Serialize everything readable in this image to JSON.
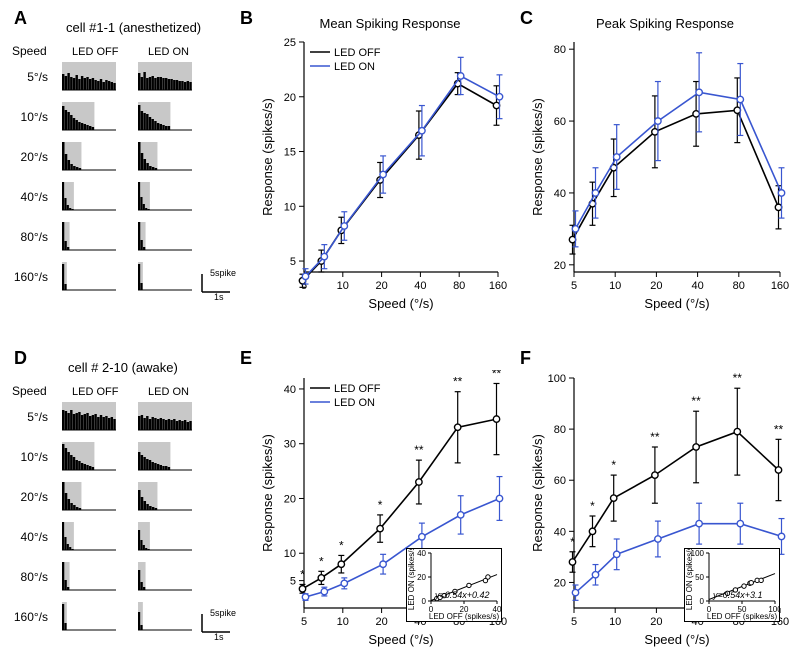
{
  "colors": {
    "bg": "#ffffff",
    "ink": "#000000",
    "off": "#000000",
    "on": "#3956d0",
    "shade": "#c8c8c8"
  },
  "panelLetters": {
    "A": "A",
    "B": "B",
    "C": "C",
    "D": "D",
    "E": "E",
    "F": "F"
  },
  "psth": {
    "cell1_title": "cell #1-1 (anesthetized)",
    "cell2_title": "cell # 2-10 (awake)",
    "speed_header": "Speed",
    "col_off": "LED OFF",
    "col_on": "LED ON",
    "speeds_labels": [
      "5°/s",
      "10°/s",
      "20°/s",
      "40°/s",
      "80°/s",
      "160°/s"
    ],
    "stim_fracs": [
      1.0,
      0.6,
      0.36,
      0.22,
      0.14,
      0.09
    ],
    "scale_v": "5spike",
    "scale_h": "1s",
    "cell1": {
      "off": [
        [
          16,
          14,
          17,
          13,
          12,
          15,
          11,
          14,
          12,
          13,
          11,
          12,
          10,
          9,
          11,
          8,
          10,
          9,
          8,
          7
        ],
        [
          24,
          20,
          18,
          15,
          12,
          10,
          8,
          7,
          6,
          5,
          4,
          3
        ],
        [
          28,
          16,
          10,
          6,
          4,
          3,
          2
        ],
        [
          28,
          12,
          5,
          2,
          1
        ],
        [
          28,
          9,
          3
        ],
        [
          26,
          6
        ]
      ],
      "on": [
        [
          17,
          13,
          18,
          12,
          13,
          14,
          12,
          13,
          13,
          12,
          12,
          11,
          11,
          10,
          10,
          9,
          9,
          8,
          9,
          8
        ],
        [
          25,
          19,
          17,
          16,
          13,
          11,
          9,
          7,
          6,
          5,
          4,
          4
        ],
        [
          28,
          17,
          11,
          7,
          4,
          3,
          2
        ],
        [
          28,
          13,
          6,
          2,
          1
        ],
        [
          28,
          10,
          3
        ],
        [
          26,
          7
        ]
      ]
    },
    "cell2": {
      "off": [
        [
          20,
          19,
          17,
          20,
          16,
          17,
          18,
          15,
          16,
          17,
          14,
          15,
          16,
          13,
          15,
          13,
          14,
          12,
          13,
          11
        ],
        [
          26,
          22,
          18,
          15,
          13,
          10,
          9,
          7,
          6,
          5,
          4,
          3
        ],
        [
          28,
          17,
          11,
          7,
          5,
          3,
          2
        ],
        [
          28,
          13,
          6,
          3,
          1
        ],
        [
          28,
          10,
          3
        ],
        [
          26,
          7
        ]
      ],
      "on": [
        [
          14,
          15,
          12,
          14,
          11,
          13,
          12,
          11,
          12,
          11,
          10,
          11,
          10,
          11,
          9,
          10,
          9,
          10,
          8,
          9
        ],
        [
          18,
          15,
          13,
          11,
          10,
          8,
          7,
          6,
          5,
          4,
          4,
          3
        ],
        [
          20,
          13,
          9,
          6,
          4,
          3,
          2
        ],
        [
          20,
          10,
          5,
          2,
          1
        ],
        [
          20,
          8,
          3
        ],
        [
          18,
          5
        ]
      ]
    }
  },
  "charts": {
    "x_speeds": [
      5,
      7,
      10,
      20,
      40,
      80,
      160
    ],
    "line_width": 1.6,
    "marker_radius": 3.2,
    "B": {
      "title": "Mean Spiking Response",
      "xlabel": "Speed (°/s)",
      "ylabel": "Response (spikes/s)",
      "yticks": [
        5,
        10,
        15,
        20,
        25
      ],
      "ylim": [
        4,
        25
      ],
      "xticks": [
        5,
        10,
        20,
        40,
        80,
        160
      ],
      "xticklabels": [
        "5",
        "10",
        "20",
        "40",
        "80",
        "160"
      ],
      "legend": {
        "off": "LED OFF",
        "on": "LED ON"
      },
      "off": {
        "y": [
          3.2,
          5.0,
          7.8,
          12.4,
          16.5,
          21.2,
          19.2
        ],
        "err": [
          0.6,
          1.0,
          1.2,
          1.6,
          2.2,
          1.0,
          1.8
        ]
      },
      "on": {
        "y": [
          3.6,
          5.4,
          8.2,
          12.9,
          16.9,
          21.9,
          20.0
        ],
        "err": [
          0.7,
          1.1,
          1.3,
          1.7,
          2.3,
          1.7,
          2.0
        ]
      }
    },
    "C": {
      "title": "Peak Spiking Response",
      "xlabel": "Speed (°/s)",
      "ylabel": "Response (spikes/s)",
      "yticks": [
        20,
        40,
        60,
        80
      ],
      "ylim": [
        18,
        82
      ],
      "xticks": [
        5,
        10,
        20,
        40,
        80,
        160
      ],
      "xticklabels": [
        "5",
        "10",
        "20",
        "40",
        "80",
        "160"
      ],
      "off": {
        "y": [
          27,
          37,
          47,
          57,
          62,
          63,
          36
        ],
        "err": [
          4,
          6,
          8,
          10,
          9,
          9,
          6
        ]
      },
      "on": {
        "y": [
          30,
          40,
          50,
          60,
          68,
          66,
          40
        ],
        "err": [
          5,
          7,
          9,
          11,
          11,
          10,
          7
        ]
      }
    },
    "E": {
      "xlabel": "Speed (°/s)",
      "ylabel": "Response (spikes/s)",
      "yticks": [
        5,
        10,
        20,
        30,
        40
      ],
      "ylim": [
        0,
        42
      ],
      "xticks": [
        5,
        10,
        20,
        40,
        80,
        160
      ],
      "xticklabels": [
        "5",
        "10",
        "20",
        "40",
        "80",
        "160"
      ],
      "legend": {
        "off": "LED OFF",
        "on": "LED ON"
      },
      "off": {
        "y": [
          3.5,
          5.5,
          8.0,
          14.5,
          23.0,
          33.0,
          34.5
        ],
        "err": [
          0.8,
          1.2,
          1.6,
          2.5,
          4.0,
          6.5,
          6.5
        ]
      },
      "on": {
        "y": [
          2.0,
          3.0,
          4.5,
          8.0,
          13.0,
          17.0,
          20.0
        ],
        "err": [
          0.6,
          0.8,
          1.0,
          1.8,
          2.5,
          3.5,
          4.0
        ]
      },
      "sig": [
        "*",
        "*",
        "*",
        "*",
        "**",
        "**",
        "**"
      ],
      "inset": {
        "xlabel": "LED OFF (spikes/s)",
        "ylabel": "LED ON (spikes/s)",
        "xlim": [
          0,
          40
        ],
        "ylim": [
          0,
          40
        ],
        "xticks": [
          0,
          20,
          40
        ],
        "yticks": [
          0,
          20,
          40
        ],
        "points_x": [
          3.5,
          5.5,
          8.0,
          14.5,
          23.0,
          33.0,
          34.5
        ],
        "points_y": [
          2.0,
          3.0,
          4.5,
          8.0,
          13.0,
          17.0,
          20.0
        ],
        "eq": "y=0.54x+0.42"
      }
    },
    "F": {
      "xlabel": "Speed (°/s)",
      "ylabel": "Response (spikes/s)",
      "yticks": [
        20,
        40,
        60,
        80,
        100
      ],
      "ylim": [
        10,
        100
      ],
      "xticks": [
        5,
        10,
        20,
        40,
        80,
        160
      ],
      "xticklabels": [
        "5",
        "10",
        "20",
        "40",
        "80",
        "160"
      ],
      "off": {
        "y": [
          28,
          40,
          53,
          62,
          73,
          79,
          64
        ],
        "err": [
          4,
          6,
          9,
          11,
          14,
          17,
          12
        ]
      },
      "on": {
        "y": [
          16,
          23,
          31,
          37,
          43,
          43,
          38
        ],
        "err": [
          3,
          4,
          6,
          7,
          8,
          8,
          7
        ]
      },
      "sig": [
        "*",
        "*",
        "*",
        "**",
        "**",
        "**",
        "**"
      ],
      "inset": {
        "xlabel": "LED OFF (spikes/s)",
        "ylabel": "LED ON (spikes/s)",
        "xlim": [
          0,
          100
        ],
        "ylim": [
          0,
          100
        ],
        "xticks": [
          0,
          50,
          100
        ],
        "yticks": [
          0,
          50,
          100
        ],
        "points_x": [
          28,
          40,
          53,
          62,
          73,
          79,
          64
        ],
        "points_y": [
          16,
          23,
          31,
          37,
          43,
          43,
          38
        ],
        "eq": "y=0.54x+3.1"
      }
    }
  }
}
